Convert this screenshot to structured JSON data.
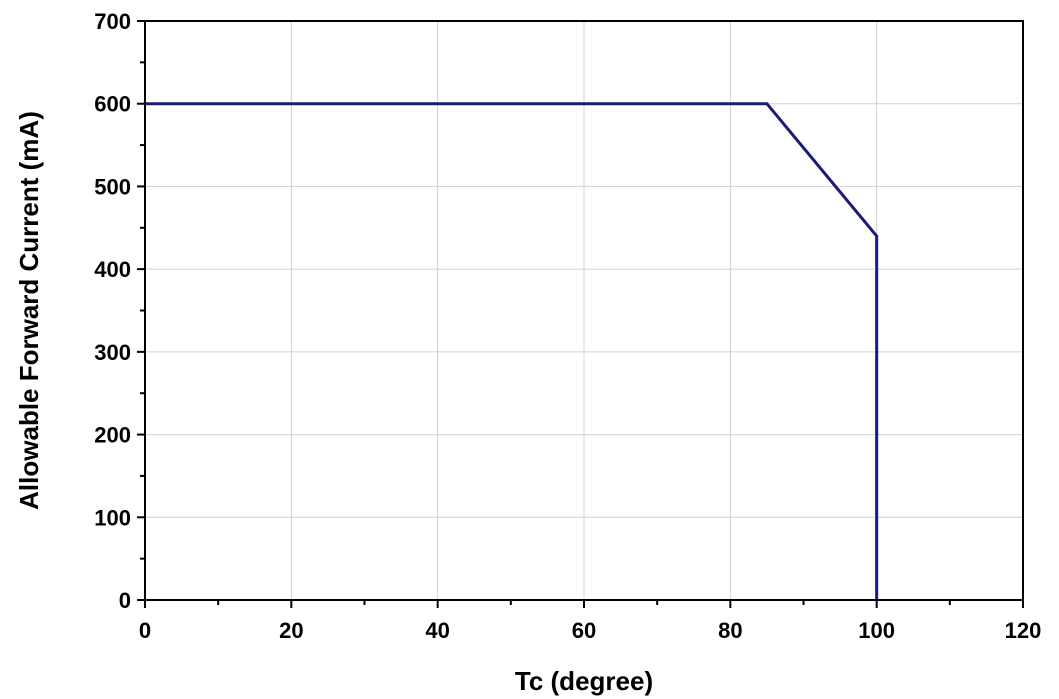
{
  "chart_data": {
    "type": "line",
    "title": "",
    "xlabel": "Tc (degree)",
    "ylabel": "Allowable Forward Current (mA)",
    "xlim": [
      0,
      120
    ],
    "ylim": [
      0,
      700
    ],
    "xticks": [
      0,
      20,
      40,
      60,
      80,
      100,
      120
    ],
    "yticks": [
      0,
      100,
      200,
      300,
      400,
      500,
      600,
      700
    ],
    "grid": true,
    "legend": "none",
    "series": [
      {
        "color": "#1a1a7a",
        "x": [
          0,
          85,
          100,
          100
        ],
        "y": [
          600,
          600,
          440,
          0
        ]
      }
    ]
  }
}
